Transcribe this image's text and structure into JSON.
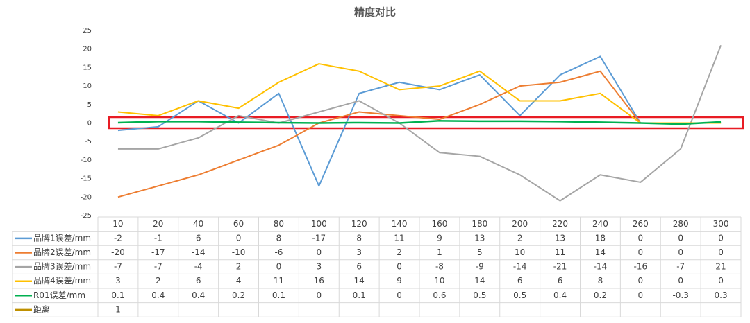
{
  "chart_data": {
    "type": "line",
    "title": "精度对比",
    "categories": [
      "10",
      "20",
      "40",
      "60",
      "80",
      "100",
      "120",
      "140",
      "160",
      "180",
      "200",
      "220",
      "240",
      "260",
      "280",
      "300"
    ],
    "series": [
      {
        "name": "品牌1误差/mm",
        "color": "#5b9bd5",
        "values": [
          -2,
          -1,
          6,
          0,
          8,
          -17,
          8,
          11,
          9,
          13,
          2,
          13,
          18,
          0,
          0,
          0
        ]
      },
      {
        "name": "品牌2误差/mm",
        "color": "#ed7d31",
        "values": [
          -20,
          -17,
          -14,
          -10,
          -6,
          0,
          3,
          2,
          1,
          5,
          10,
          11,
          14,
          0,
          0,
          0
        ]
      },
      {
        "name": "品牌3误差/mm",
        "color": "#a5a5a5",
        "values": [
          -7,
          -7,
          -4,
          2,
          0,
          3,
          6,
          0,
          -8,
          -9,
          -14,
          -21,
          -14,
          -16,
          -7,
          21
        ]
      },
      {
        "name": "品牌4误差/mm",
        "color": "#ffc000",
        "values": [
          3,
          2,
          6,
          4,
          11,
          16,
          14,
          9,
          10,
          14,
          6,
          6,
          8,
          0,
          0,
          0
        ]
      },
      {
        "name": "R01误差/mm",
        "color": "#00b050",
        "values": [
          0.1,
          0.4,
          0.4,
          0.2,
          0.1,
          0,
          0.1,
          0,
          0.6,
          0.5,
          0.5,
          0.4,
          0.2,
          0,
          -0.3,
          0.3
        ]
      },
      {
        "name": "距离",
        "color": "#bf9000",
        "values": [
          1,
          null,
          null,
          null,
          null,
          null,
          null,
          null,
          null,
          null,
          null,
          null,
          null,
          null,
          null,
          null
        ]
      }
    ],
    "ylim": [
      -25,
      25
    ],
    "yticks": [
      -25,
      -20,
      -15,
      -10,
      -5,
      0,
      5,
      10,
      15,
      20,
      25
    ],
    "grid": false
  }
}
